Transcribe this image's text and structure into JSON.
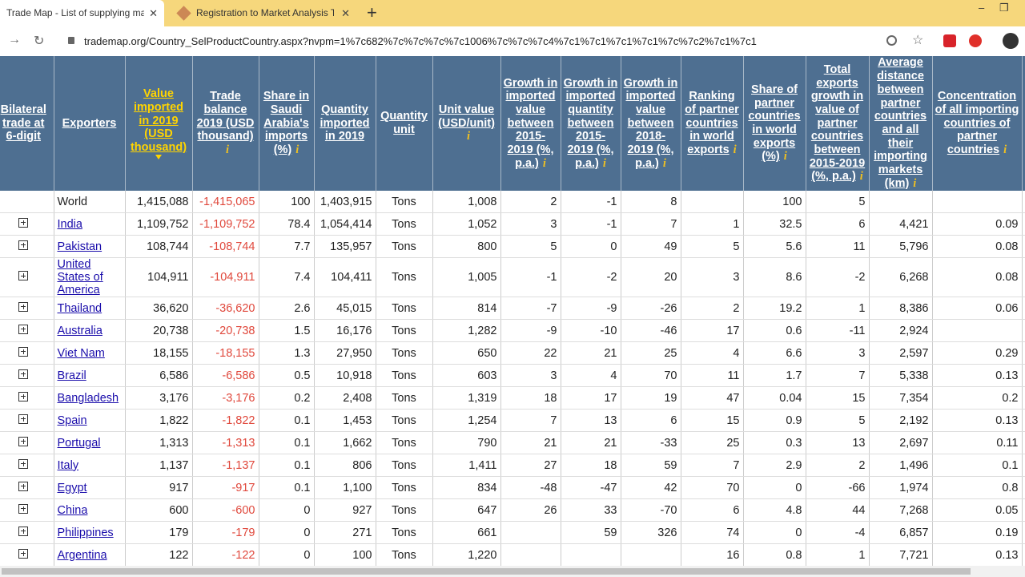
{
  "browser": {
    "tabs": [
      "Trade Map - List of supplying ma",
      "Registration to Market Analysis T"
    ],
    "url": "trademap.org/Country_SelProductCountry.aspx?nvpm=1%7c682%7c%7c%7c%7c1006%7c%7c%7c4%7c1%7c1%7c1%7c1%7c%7c2%7c1%7c1"
  },
  "table": {
    "headers": [
      "Bilateral trade at 6-digit",
      "Exporters",
      "Value imported in 2019 (USD thousand)",
      "Trade balance 2019 (USD thousand)",
      "Share in Saudi Arabia's imports (%)",
      "Quantity imported in 2019",
      "Quantity unit",
      "Unit value (USD/unit)",
      "Growth in imported value between 2015-2019 (%, p.a.)",
      "Growth in imported quantity between 2015-2019 (%, p.a.)",
      "Growth in imported value between 2018-2019 (%, p.a.)",
      "Ranking of partner countries in world exports",
      "Share of partner countries in world exports (%)",
      "Total exports growth in value of partner countries between 2015-2019 (%, p.a.)",
      "Average distance between partner countries and all their importing markets (km)",
      "Concentration of all importing countries of partner countries"
    ],
    "rows": [
      {
        "country": "World",
        "cells": [
          "1,415,088",
          "-1,415,065",
          "100",
          "1,403,915",
          "Tons",
          "1,008",
          "2",
          "-1",
          "8",
          null,
          "100",
          "5",
          null,
          null
        ]
      },
      {
        "country": "India",
        "cells": [
          "1,109,752",
          "-1,109,752",
          "78.4",
          "1,054,414",
          "Tons",
          "1,052",
          "3",
          "-1",
          "7",
          "1",
          "32.5",
          "6",
          "4,421",
          "0.09"
        ]
      },
      {
        "country": "Pakistan",
        "cells": [
          "108,744",
          "-108,744",
          "7.7",
          "135,957",
          "Tons",
          "800",
          "5",
          "0",
          "49",
          "5",
          "5.6",
          "11",
          "5,796",
          "0.08"
        ]
      },
      {
        "country": "United States of America",
        "cells": [
          "104,911",
          "-104,911",
          "7.4",
          "104,411",
          "Tons",
          "1,005",
          "-1",
          "-2",
          "20",
          "3",
          "8.6",
          "-2",
          "6,268",
          "0.08"
        ]
      },
      {
        "country": "Thailand",
        "cells": [
          "36,620",
          "-36,620",
          "2.6",
          "45,015",
          "Tons",
          "814",
          "-7",
          "-9",
          "-26",
          "2",
          "19.2",
          "1",
          "8,386",
          "0.06"
        ]
      },
      {
        "country": "Australia",
        "cells": [
          "20,738",
          "-20,738",
          "1.5",
          "16,176",
          "Tons",
          "1,282",
          "-9",
          "-10",
          "-46",
          "17",
          "0.6",
          "-11",
          "2,924",
          null
        ]
      },
      {
        "country": "Viet Nam",
        "cells": [
          "18,155",
          "-18,155",
          "1.3",
          "27,950",
          "Tons",
          "650",
          "22",
          "21",
          "25",
          "4",
          "6.6",
          "3",
          "2,597",
          "0.29"
        ]
      },
      {
        "country": "Brazil",
        "cells": [
          "6,586",
          "-6,586",
          "0.5",
          "10,918",
          "Tons",
          "603",
          "3",
          "4",
          "70",
          "11",
          "1.7",
          "7",
          "5,338",
          "0.13"
        ]
      },
      {
        "country": "Bangladesh",
        "cells": [
          "3,176",
          "-3,176",
          "0.2",
          "2,408",
          "Tons",
          "1,319",
          "18",
          "17",
          "19",
          "47",
          "0.04",
          "15",
          "7,354",
          "0.2"
        ]
      },
      {
        "country": "Spain",
        "cells": [
          "1,822",
          "-1,822",
          "0.1",
          "1,453",
          "Tons",
          "1,254",
          "7",
          "13",
          "6",
          "15",
          "0.9",
          "5",
          "2,192",
          "0.13"
        ]
      },
      {
        "country": "Portugal",
        "cells": [
          "1,313",
          "-1,313",
          "0.1",
          "1,662",
          "Tons",
          "790",
          "21",
          "21",
          "-33",
          "25",
          "0.3",
          "13",
          "2,697",
          "0.11"
        ]
      },
      {
        "country": "Italy",
        "cells": [
          "1,137",
          "-1,137",
          "0.1",
          "806",
          "Tons",
          "1,411",
          "27",
          "18",
          "59",
          "7",
          "2.9",
          "2",
          "1,496",
          "0.1"
        ]
      },
      {
        "country": "Egypt",
        "cells": [
          "917",
          "-917",
          "0.1",
          "1,100",
          "Tons",
          "834",
          "-48",
          "-47",
          "42",
          "70",
          "0",
          "-66",
          "1,974",
          "0.8"
        ]
      },
      {
        "country": "China",
        "cells": [
          "600",
          "-600",
          "0",
          "927",
          "Tons",
          "647",
          "26",
          "33",
          "-70",
          "6",
          "4.8",
          "44",
          "7,268",
          "0.05"
        ]
      },
      {
        "country": "Philippines",
        "cells": [
          "179",
          "-179",
          "0",
          "271",
          "Tons",
          "661",
          null,
          "59",
          "326",
          "74",
          "0",
          "-4",
          "6,857",
          "0.19"
        ]
      },
      {
        "country": "Argentina",
        "cells": [
          "122",
          "-122",
          "0",
          "100",
          "Tons",
          "1,220",
          null,
          null,
          null,
          "16",
          "0.8",
          "1",
          "7,721",
          "0.13"
        ]
      }
    ]
  }
}
